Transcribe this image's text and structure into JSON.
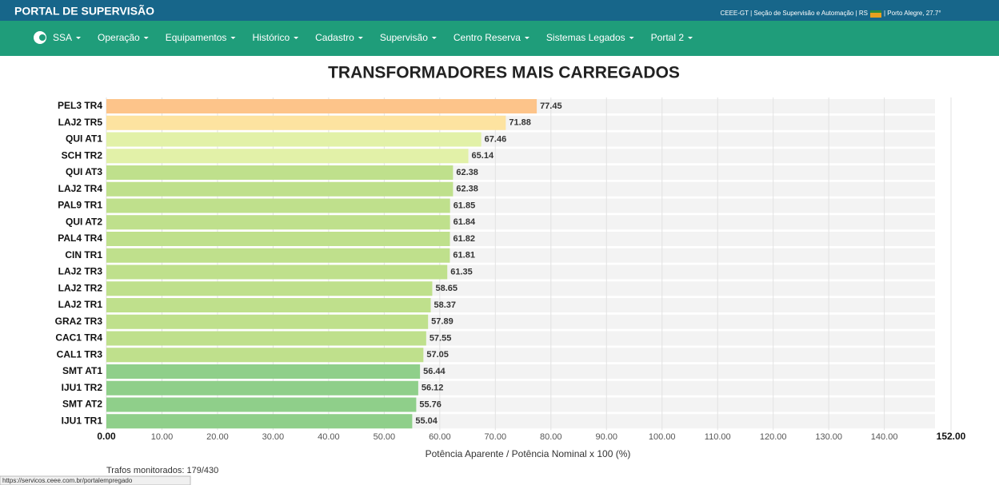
{
  "header": {
    "title": "PORTAL DE SUPERVISÃO",
    "org": "CEEE-GT | Seção de Supervisão e Automação | RS",
    "location": "| Porto Alegre, 27.7°"
  },
  "nav": [
    "SSA",
    "Operação",
    "Equipamentos",
    "Histórico",
    "Cadastro",
    "Supervisão",
    "Centro Reserva",
    "Sistemas Legados",
    "Portal 2"
  ],
  "chart_data": {
    "type": "hbar",
    "title": "TRANSFORMADORES MAIS CARREGADOS",
    "categories": [
      "PEL3 TR4",
      "LAJ2 TR5",
      "QUI AT1",
      "SCH TR2",
      "QUI AT3",
      "LAJ2 TR4",
      "PAL9 TR1",
      "QUI AT2",
      "PAL4 TR4",
      "CIN TR1",
      "LAJ2 TR3",
      "LAJ2 TR2",
      "LAJ2 TR1",
      "GRA2 TR3",
      "CAC1 TR4",
      "CAL1 TR3",
      "SMT AT1",
      "IJU1 TR2",
      "SMT AT2",
      "IJU1 TR1"
    ],
    "values": [
      77.45,
      71.88,
      67.46,
      65.14,
      62.38,
      62.38,
      61.85,
      61.84,
      61.82,
      61.81,
      61.35,
      58.65,
      58.37,
      57.89,
      57.55,
      57.05,
      56.44,
      56.12,
      55.76,
      55.04
    ],
    "colors": [
      "#fdc48a",
      "#fde3a0",
      "#e2f1a8",
      "#e2f1a8",
      "#bfe08c",
      "#bfe08c",
      "#bfe08c",
      "#bfe08c",
      "#bfe08c",
      "#bfe08c",
      "#bfe08c",
      "#bfe08c",
      "#bfe08c",
      "#bfe08c",
      "#bfe08c",
      "#bfe08c",
      "#8fcf8a",
      "#8fcf8a",
      "#8fcf8a",
      "#8fcf8a"
    ],
    "xlim": [
      0,
      152
    ],
    "xticks": [
      {
        "value": 0,
        "label": "0.00"
      },
      {
        "value": 10,
        "label": "10.00"
      },
      {
        "value": 20,
        "label": "20.00"
      },
      {
        "value": 30,
        "label": "30.00"
      },
      {
        "value": 40,
        "label": "40.00"
      },
      {
        "value": 50,
        "label": "50.00"
      },
      {
        "value": 60,
        "label": "60.00"
      },
      {
        "value": 70,
        "label": "70.00"
      },
      {
        "value": 80,
        "label": "80.00"
      },
      {
        "value": 90,
        "label": "90.00"
      },
      {
        "value": 100,
        "label": "100.00"
      },
      {
        "value": 110,
        "label": "110.00"
      },
      {
        "value": 120,
        "label": "120.00"
      },
      {
        "value": 130,
        "label": "130.00"
      },
      {
        "value": 140,
        "label": "140.00"
      },
      {
        "value": 152,
        "label": "152.00"
      }
    ],
    "xlabel": "Potência Aparente / Potência Nominal x 100 (%)",
    "grid": true
  },
  "footer_note": "Trafos monitorados: 179/430",
  "status_url": "https://servicos.ceee.com.br/portalempregado"
}
